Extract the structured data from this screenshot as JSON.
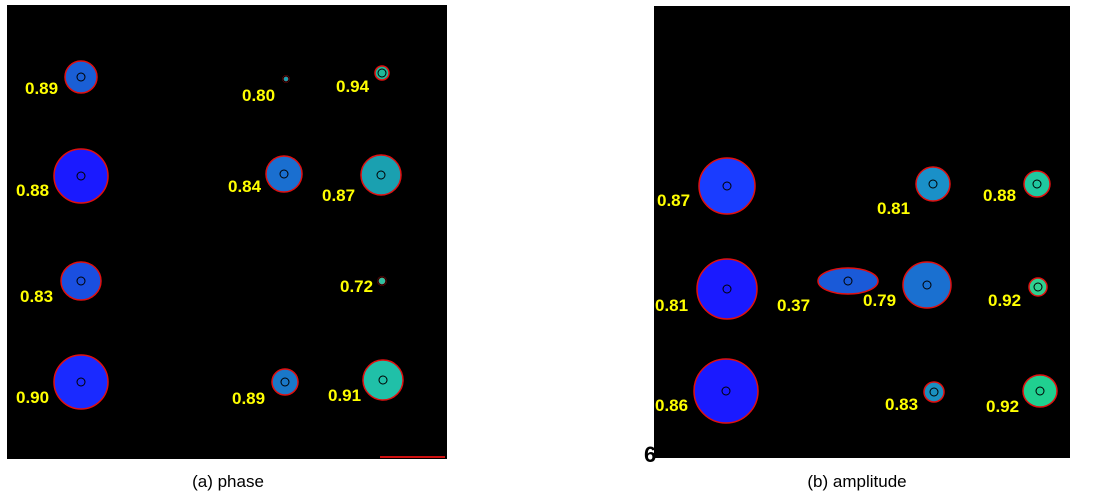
{
  "panels": [
    {
      "caption": "(a) phase",
      "labels": [
        "0.89",
        "0.80",
        "0.94",
        "0.88",
        "0.84",
        "0.87",
        "0.83",
        "0.72",
        "0.90",
        "0.89",
        "0.91"
      ]
    },
    {
      "caption": "(b) amplitude",
      "labels": [
        "0.87",
        "0.81",
        "0.88",
        "0.81",
        "0.37",
        "0.79",
        "0.92",
        "0.86",
        "0.83",
        "0.92"
      ]
    }
  ],
  "fragment": "6"
}
